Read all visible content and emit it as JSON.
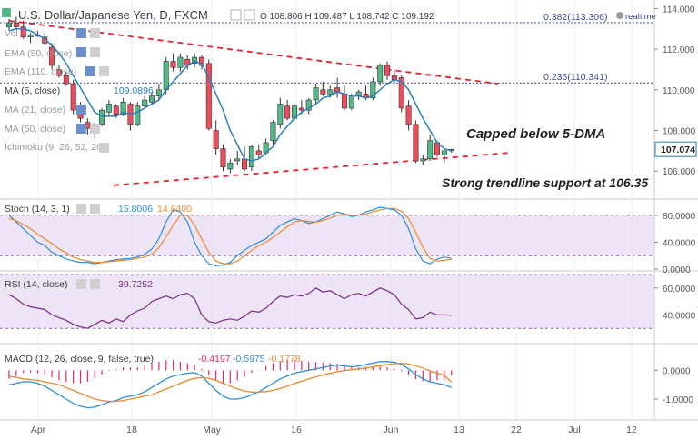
{
  "header": {
    "title": "U.S. Dollar/Japanese Yen, D, FXCM",
    "ohlc": "O 108.806  H 109.487  L 108.742  C 109.192",
    "realtime": "realtime"
  },
  "indicators": {
    "vol": "Vol",
    "ema1": "EMA (50, close)",
    "ema2": "EMA (110, close)",
    "ma5_label": "MA (5, close)",
    "ma5_value": "109.0896",
    "ma21": "MA (21, close)",
    "ma50": "MA (50, close)",
    "ichimoku": "Ichimoku (9, 26, 52, 26)"
  },
  "annotations": {
    "capped": "Capped below 5-DMA",
    "support": "Strong trendline support at 106.35"
  },
  "fib": [
    {
      "label": "0.382(113.306)",
      "level": 113.306
    },
    {
      "label": "0.236(110.341)",
      "level": 110.341
    }
  ],
  "price_tag": {
    "label": "107.074",
    "value": 107.074
  },
  "stoch": {
    "label": "Stoch (14, 3, 1)",
    "v1": "15.8006",
    "v2": "14.6400"
  },
  "rsi": {
    "label": "RSI (14, close)",
    "value": "39.7252"
  },
  "macd": {
    "label": "MACD (12, 26, close, 9, false, true)",
    "v1": "-0.4197",
    "v2": "-0.5975",
    "v3": "-0.1778"
  },
  "colors": {
    "bull": "#53b987",
    "bear": "#eb4d5c",
    "ma5": "#2a7fc0",
    "trend": "#e8232e",
    "stoch_k": "#2a8fd8",
    "stoch_d": "#f0882a",
    "rsi": "#7b2a86",
    "macd": "#2a8fd8",
    "signal": "#f0882a",
    "hist": "#e8236e",
    "band": "#e6d9f2",
    "fib": "#3b4b9a"
  },
  "chart_data": [
    {
      "type": "candlestick",
      "title": "U.S. Dollar/Japanese Yen, D, FXCM",
      "x_ticks": [
        "Apr",
        "18",
        "May",
        "16",
        "Jun",
        "13",
        "22",
        "Jul",
        "12"
      ],
      "y_ticks": [
        "114.000",
        "112.000",
        "110.000",
        "108.000",
        "106.000"
      ],
      "ylim": [
        104.8,
        114.2
      ],
      "candles": [
        [
          113.1,
          113.5,
          112.9,
          113.3
        ],
        [
          113.3,
          113.6,
          113.0,
          113.1
        ],
        [
          113.1,
          113.4,
          112.5,
          112.6
        ],
        [
          112.6,
          112.8,
          112.3,
          112.7
        ],
        [
          112.7,
          112.9,
          112.6,
          112.7
        ],
        [
          112.6,
          112.8,
          112.2,
          112.3
        ],
        [
          112.1,
          112.3,
          111.0,
          111.2
        ],
        [
          111.0,
          111.2,
          110.6,
          110.7
        ],
        [
          110.7,
          110.9,
          110.2,
          110.3
        ],
        [
          110.3,
          110.5,
          108.8,
          109.0
        ],
        [
          109.0,
          109.4,
          108.4,
          108.6
        ],
        [
          108.4,
          108.6,
          107.8,
          108.1
        ],
        [
          108.1,
          108.4,
          107.6,
          108.2
        ],
        [
          108.3,
          109.1,
          108.2,
          109.0
        ],
        [
          108.9,
          109.5,
          108.7,
          109.3
        ],
        [
          109.2,
          109.3,
          108.6,
          108.8
        ],
        [
          108.8,
          109.6,
          108.7,
          109.4
        ],
        [
          109.3,
          109.4,
          108.0,
          108.3
        ],
        [
          108.3,
          109.4,
          108.2,
          109.2
        ],
        [
          109.2,
          109.7,
          109.1,
          109.5
        ],
        [
          109.4,
          109.9,
          109.3,
          109.7
        ],
        [
          109.7,
          110.3,
          109.5,
          110.0
        ],
        [
          110.0,
          111.6,
          109.8,
          111.4
        ],
        [
          111.4,
          111.8,
          110.9,
          111.1
        ],
        [
          111.1,
          111.8,
          110.9,
          111.6
        ],
        [
          111.5,
          111.7,
          111.0,
          111.2
        ],
        [
          111.3,
          111.8,
          111.1,
          111.6
        ],
        [
          111.6,
          111.7,
          111.0,
          111.2
        ],
        [
          111.3,
          111.5,
          108.0,
          108.1
        ],
        [
          108.0,
          108.5,
          106.8,
          107.1
        ],
        [
          107.1,
          107.3,
          106.0,
          106.2
        ],
        [
          106.1,
          106.6,
          105.9,
          106.4
        ],
        [
          106.5,
          107.0,
          106.3,
          106.6
        ],
        [
          106.6,
          107.2,
          106.0,
          106.1
        ],
        [
          106.2,
          107.3,
          106.0,
          107.2
        ],
        [
          107.0,
          107.3,
          106.6,
          106.8
        ],
        [
          106.9,
          107.6,
          106.8,
          107.4
        ],
        [
          107.5,
          108.5,
          107.3,
          108.4
        ],
        [
          108.3,
          109.6,
          108.1,
          109.3
        ],
        [
          109.2,
          109.5,
          108.5,
          108.6
        ],
        [
          108.6,
          109.3,
          108.5,
          109.2
        ],
        [
          109.1,
          109.5,
          108.8,
          109.0
        ],
        [
          109.0,
          109.6,
          108.8,
          109.5
        ],
        [
          109.5,
          110.3,
          109.3,
          110.1
        ],
        [
          110.0,
          110.4,
          109.7,
          109.8
        ],
        [
          109.8,
          110.2,
          109.6,
          110.0
        ],
        [
          110.1,
          110.6,
          109.6,
          109.9
        ],
        [
          109.8,
          110.2,
          109.0,
          109.1
        ],
        [
          109.1,
          109.8,
          109.0,
          109.7
        ],
        [
          109.7,
          110.0,
          109.5,
          109.9
        ],
        [
          109.8,
          110.2,
          109.5,
          109.6
        ],
        [
          109.6,
          110.6,
          109.5,
          110.4
        ],
        [
          110.4,
          111.3,
          110.2,
          111.2
        ],
        [
          111.2,
          111.4,
          110.5,
          110.7
        ],
        [
          110.7,
          111.0,
          110.3,
          110.5
        ],
        [
          110.6,
          110.7,
          108.9,
          109.1
        ],
        [
          109.2,
          109.5,
          108.0,
          108.3
        ],
        [
          108.3,
          108.5,
          106.4,
          106.5
        ],
        [
          106.5,
          106.8,
          106.3,
          106.6
        ],
        [
          106.6,
          107.8,
          106.5,
          107.5
        ],
        [
          107.4,
          107.5,
          106.7,
          106.8
        ],
        [
          106.8,
          107.1,
          106.4,
          107.0
        ],
        [
          107.0,
          107.1,
          106.9,
          107.07
        ]
      ],
      "ma5": [
        112.9,
        113.0,
        113.0,
        112.9,
        112.7,
        112.5,
        112.2,
        111.8,
        111.3,
        110.7,
        110.1,
        109.5,
        108.9,
        108.7,
        108.7,
        108.7,
        108.9,
        108.8,
        108.9,
        109.1,
        109.3,
        109.5,
        110.0,
        110.4,
        110.8,
        111.2,
        111.4,
        111.3,
        110.6,
        109.8,
        109.0,
        108.0,
        107.3,
        106.6,
        106.5,
        106.6,
        106.9,
        107.2,
        107.8,
        108.2,
        108.6,
        108.9,
        109.1,
        109.3,
        109.6,
        109.7,
        109.9,
        109.8,
        109.7,
        109.7,
        109.6,
        109.7,
        110.0,
        110.3,
        110.5,
        110.4,
        110.0,
        109.3,
        108.6,
        108.0,
        107.4,
        107.1,
        107.0
      ]
    },
    {
      "type": "line",
      "title": "Stoch (14, 3, 1)",
      "y_ticks": [
        "80.0000",
        "40.0000",
        "0.0000"
      ],
      "ylim": [
        0,
        100
      ],
      "band": [
        20,
        80
      ],
      "series": [
        {
          "name": "",
          "values": [
            80,
            70,
            60,
            50,
            40,
            35,
            25,
            20,
            15,
            12,
            10,
            10,
            8,
            10,
            12,
            14,
            15,
            16,
            18,
            22,
            30,
            45,
            70,
            88,
            85,
            70,
            40,
            20,
            8,
            5,
            6,
            10,
            20,
            28,
            35,
            40,
            45,
            55,
            65,
            70,
            75,
            72,
            68,
            70,
            75,
            80,
            85,
            82,
            78,
            80,
            85,
            88,
            92,
            90,
            88,
            80,
            60,
            30,
            12,
            8,
            15,
            18,
            15.8
          ]
        },
        {
          "name": "",
          "values": [
            75,
            72,
            66,
            60,
            52,
            45,
            38,
            30,
            24,
            18,
            14,
            12,
            10,
            10,
            11,
            12,
            13,
            14,
            16,
            18,
            22,
            32,
            48,
            65,
            80,
            80,
            65,
            45,
            25,
            12,
            8,
            8,
            12,
            20,
            28,
            35,
            40,
            47,
            55,
            63,
            70,
            72,
            71,
            70,
            72,
            76,
            80,
            82,
            80,
            80,
            82,
            85,
            88,
            90,
            90,
            86,
            75,
            55,
            32,
            16,
            12,
            13,
            14.6
          ]
        }
      ]
    },
    {
      "type": "line",
      "title": "RSI (14, close)",
      "y_ticks": [
        "60.0000",
        "40.0000"
      ],
      "ylim": [
        20,
        70
      ],
      "band": [
        30,
        70
      ],
      "series": [
        {
          "name": "",
          "values": [
            55,
            52,
            48,
            46,
            45,
            44,
            40,
            38,
            36,
            33,
            31,
            30,
            33,
            36,
            34,
            37,
            35,
            40,
            43,
            45,
            50,
            52,
            54,
            52,
            55,
            56,
            52,
            40,
            35,
            34,
            36,
            37,
            36,
            39,
            43,
            42,
            45,
            50,
            54,
            53,
            55,
            54,
            56,
            60,
            57,
            58,
            55,
            52,
            55,
            56,
            54,
            57,
            60,
            58,
            55,
            48,
            44,
            37,
            38,
            42,
            40,
            40,
            39.7
          ]
        }
      ]
    },
    {
      "type": "line",
      "title": "MACD (12, 26, close, 9, false, true)",
      "y_ticks": [
        "0.0000",
        "-1.0000"
      ],
      "ylim": [
        -1.6,
        0.8
      ],
      "series": [
        {
          "name": "",
          "values": [
            -0.5,
            -0.45,
            -0.4,
            -0.4,
            -0.45,
            -0.55,
            -0.7,
            -0.85,
            -1.0,
            -1.15,
            -1.25,
            -1.3,
            -1.28,
            -1.2,
            -1.1,
            -1.05,
            -0.95,
            -0.9,
            -0.85,
            -0.75,
            -0.6,
            -0.45,
            -0.3,
            -0.2,
            -0.15,
            -0.1,
            -0.08,
            -0.2,
            -0.45,
            -0.7,
            -0.9,
            -1.0,
            -1.0,
            -0.95,
            -0.85,
            -0.75,
            -0.6,
            -0.45,
            -0.3,
            -0.2,
            -0.1,
            -0.05,
            0.0,
            0.05,
            0.1,
            0.15,
            0.18,
            0.15,
            0.12,
            0.15,
            0.2,
            0.25,
            0.3,
            0.3,
            0.28,
            0.2,
            0.05,
            -0.15,
            -0.3,
            -0.4,
            -0.45,
            -0.5,
            -0.5975
          ]
        },
        {
          "name": "",
          "values": [
            -0.2,
            -0.25,
            -0.3,
            -0.32,
            -0.35,
            -0.4,
            -0.45,
            -0.5,
            -0.6,
            -0.7,
            -0.8,
            -0.9,
            -1.0,
            -1.05,
            -1.08,
            -1.08,
            -1.05,
            -1.0,
            -0.95,
            -0.9,
            -0.85,
            -0.75,
            -0.65,
            -0.55,
            -0.45,
            -0.35,
            -0.28,
            -0.25,
            -0.28,
            -0.35,
            -0.45,
            -0.55,
            -0.65,
            -0.72,
            -0.76,
            -0.76,
            -0.74,
            -0.7,
            -0.63,
            -0.55,
            -0.46,
            -0.38,
            -0.3,
            -0.23,
            -0.16,
            -0.1,
            -0.05,
            -0.01,
            0.02,
            0.05,
            0.08,
            0.12,
            0.16,
            0.2,
            0.23,
            0.24,
            0.22,
            0.16,
            0.08,
            -0.02,
            -0.1,
            -0.17,
            -0.4197
          ]
        }
      ],
      "histogram": [
        -0.3,
        -0.2,
        -0.1,
        -0.08,
        -0.1,
        -0.15,
        -0.25,
        -0.35,
        -0.4,
        -0.45,
        -0.45,
        -0.4,
        -0.28,
        -0.15,
        -0.02,
        0.03,
        0.1,
        0.1,
        0.1,
        0.15,
        0.25,
        0.3,
        0.35,
        0.35,
        0.3,
        0.25,
        0.2,
        0.05,
        -0.17,
        -0.35,
        -0.45,
        -0.45,
        -0.35,
        -0.23,
        -0.09,
        0.01,
        0.14,
        0.25,
        0.33,
        0.35,
        0.36,
        0.33,
        0.3,
        0.28,
        0.26,
        0.25,
        0.23,
        0.16,
        0.1,
        0.1,
        0.12,
        0.13,
        0.14,
        0.1,
        0.05,
        -0.04,
        -0.17,
        -0.31,
        -0.38,
        -0.38,
        -0.35,
        -0.33,
        -0.1778
      ]
    }
  ]
}
